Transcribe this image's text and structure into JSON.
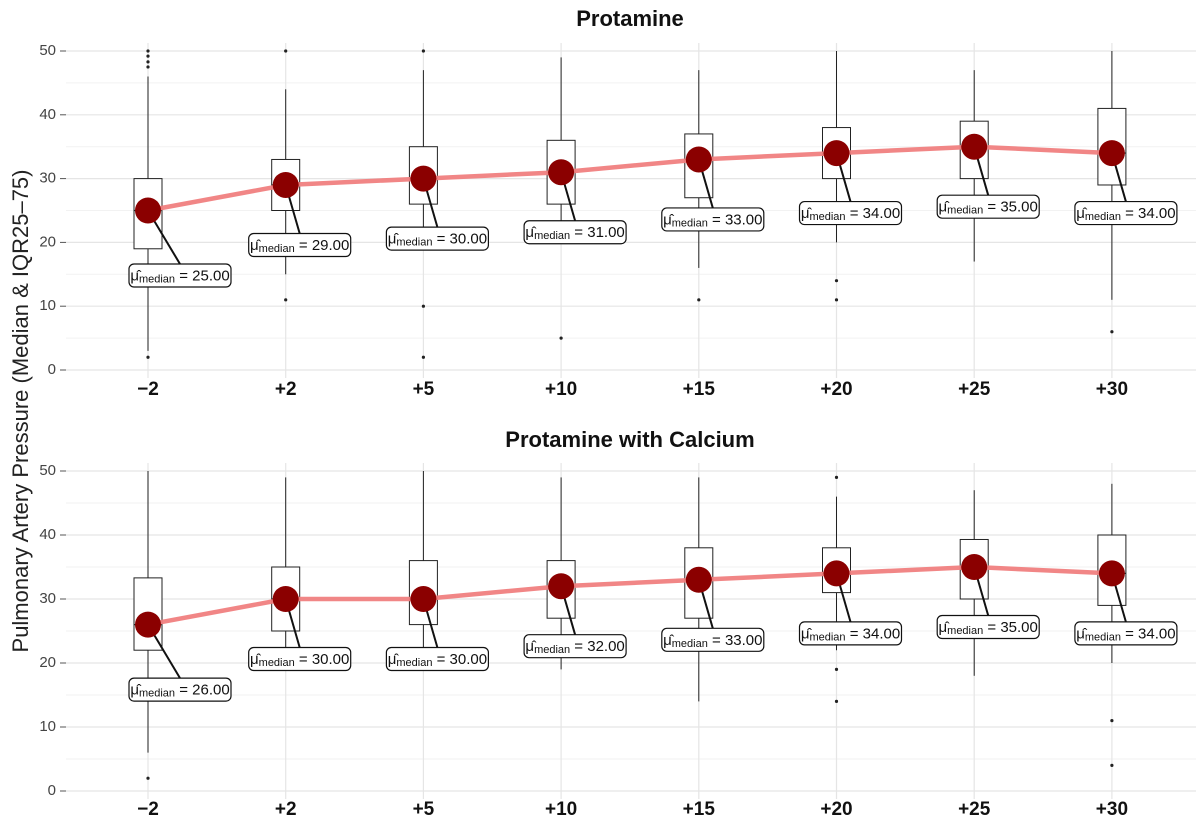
{
  "chart_data": {
    "type": "box",
    "ylabel": "Pulmonary Artery Pressure (Median & IQR25–75)",
    "xlabel": "",
    "categories": [
      "−2",
      "+2",
      "+5",
      "+10",
      "+15",
      "+20",
      "+25",
      "+30"
    ],
    "yticks": [
      0,
      10,
      20,
      30,
      40,
      50
    ],
    "ylim": [
      0,
      50
    ],
    "grid": true,
    "label_symbol": "μ̂",
    "label_subscript": "median",
    "colors": {
      "median_line": "#f08080",
      "median_point": "#8b0000",
      "box": "#222222",
      "grid": "#e5e5e5"
    },
    "panels": [
      {
        "title": "Protamine",
        "medians": [
          25,
          29,
          30,
          31,
          33,
          34,
          35,
          34
        ],
        "median_labels": [
          "25.00",
          "29.00",
          "30.00",
          "31.00",
          "33.00",
          "34.00",
          "35.00",
          "34.00"
        ],
        "boxes": [
          {
            "q1": 19,
            "median": 25,
            "q3": 30,
            "whisker_low": 3,
            "whisker_high": 46,
            "outliers": [
              2,
              47.5,
              48.3,
              49.2,
              50
            ]
          },
          {
            "q1": 25,
            "median": 29,
            "q3": 33,
            "whisker_low": 15,
            "whisker_high": 44,
            "outliers": [
              11,
              50
            ]
          },
          {
            "q1": 26,
            "median": 30,
            "q3": 35,
            "whisker_low": 19,
            "whisker_high": 47,
            "outliers": [
              2,
              10,
              50
            ]
          },
          {
            "q1": 26,
            "median": 31,
            "q3": 36,
            "whisker_low": 21,
            "whisker_high": 49,
            "outliers": [
              5
            ]
          },
          {
            "q1": 27,
            "median": 33,
            "q3": 37,
            "whisker_low": 16,
            "whisker_high": 47,
            "outliers": [
              11
            ]
          },
          {
            "q1": 30,
            "median": 34,
            "q3": 38,
            "whisker_low": 20,
            "whisker_high": 50,
            "outliers": [
              11,
              14
            ]
          },
          {
            "q1": 30,
            "median": 35,
            "q3": 39,
            "whisker_low": 17,
            "whisker_high": 47,
            "outliers": []
          },
          {
            "q1": 29,
            "median": 34,
            "q3": 41,
            "whisker_low": 11,
            "whisker_high": 50,
            "outliers": [
              6
            ]
          }
        ]
      },
      {
        "title": "Protamine with Calcium",
        "medians": [
          26,
          30,
          30,
          32,
          33,
          34,
          35,
          34
        ],
        "median_labels": [
          "26.00",
          "30.00",
          "30.00",
          "32.00",
          "33.00",
          "34.00",
          "35.00",
          "34.00"
        ],
        "boxes": [
          {
            "q1": 22,
            "median": 26,
            "q3": 33.3,
            "whisker_low": 6,
            "whisker_high": 50,
            "outliers": [
              2
            ]
          },
          {
            "q1": 25,
            "median": 30,
            "q3": 35,
            "whisker_low": 20,
            "whisker_high": 49,
            "outliers": []
          },
          {
            "q1": 26,
            "median": 30,
            "q3": 36,
            "whisker_low": 20,
            "whisker_high": 50,
            "outliers": []
          },
          {
            "q1": 27,
            "median": 32,
            "q3": 36,
            "whisker_low": 19,
            "whisker_high": 49,
            "outliers": []
          },
          {
            "q1": 27,
            "median": 33,
            "q3": 38,
            "whisker_low": 14,
            "whisker_high": 49,
            "outliers": []
          },
          {
            "q1": 31,
            "median": 34,
            "q3": 38,
            "whisker_low": 22,
            "whisker_high": 46,
            "outliers": [
              14,
              19,
              49
            ]
          },
          {
            "q1": 30,
            "median": 35,
            "q3": 39.3,
            "whisker_low": 18,
            "whisker_high": 47,
            "outliers": []
          },
          {
            "q1": 29,
            "median": 34,
            "q3": 40,
            "whisker_low": 20,
            "whisker_high": 48,
            "outliers": [
              4,
              11
            ]
          }
        ]
      }
    ]
  }
}
